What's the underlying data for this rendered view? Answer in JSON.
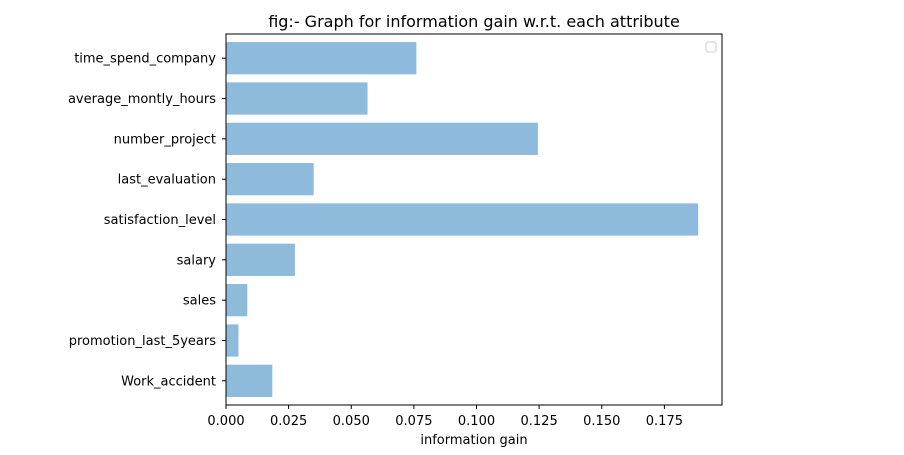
{
  "chart_data": {
    "type": "bar",
    "orientation": "horizontal",
    "title": "fig:- Graph for information gain w.r.t. each attribute",
    "xlabel": "information gain",
    "ylabel": "",
    "categories": [
      "time_spend_company",
      "average_montly_hours",
      "number_project",
      "last_evaluation",
      "satisfaction_level",
      "salary",
      "sales",
      "promotion_last_5years",
      "Work_accident"
    ],
    "values": [
      0.076,
      0.0565,
      0.1245,
      0.035,
      0.1885,
      0.0275,
      0.0085,
      0.005,
      0.0185
    ],
    "xlim": [
      0,
      0.198
    ],
    "xticks": [
      0.0,
      0.025,
      0.05,
      0.075,
      0.1,
      0.125,
      0.15,
      0.175
    ],
    "xtick_labels": [
      "0.000",
      "0.025",
      "0.050",
      "0.075",
      "0.100",
      "0.125",
      "0.150",
      "0.175"
    ],
    "bar_color": "#8ebbdb",
    "grid": false,
    "legend": {
      "placement": "top-right",
      "entries": []
    }
  }
}
